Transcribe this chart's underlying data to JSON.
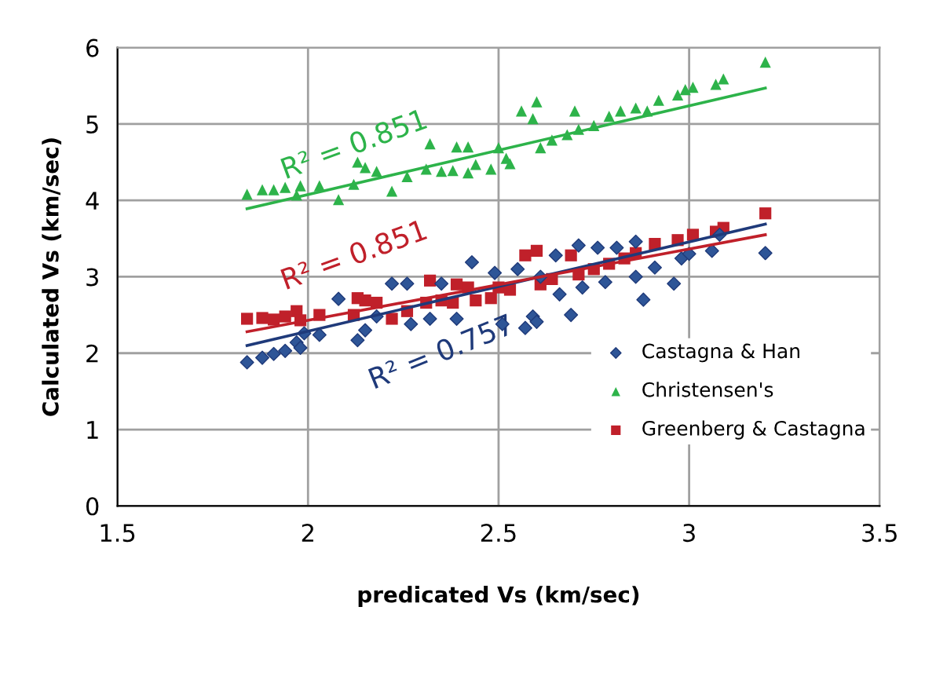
{
  "chart_data": {
    "type": "scatter",
    "xlabel": "predicated Vs (km/sec)",
    "ylabel": "Calculated Vs (km/sec)",
    "xlim": [
      1.5,
      3.5
    ],
    "xticks": [
      1.5,
      2,
      2.5,
      3,
      3.5
    ],
    "ylim": [
      0,
      6
    ],
    "yticks": [
      0,
      1,
      2,
      3,
      4,
      5,
      6
    ],
    "grid": true,
    "legend": "right",
    "annotations": [
      "R² = 0.757",
      "R² = 0.851",
      "R² = 0.851"
    ],
    "series": [
      {
        "name": "Castagna & Han",
        "color": "#2e5597",
        "marker": "diamond",
        "x": [
          1.84,
          1.88,
          1.91,
          1.94,
          1.97,
          1.98,
          1.99,
          2.03,
          2.08,
          2.13,
          2.15,
          2.18,
          2.22,
          2.26,
          2.27,
          2.32,
          2.35,
          2.39,
          2.43,
          2.49,
          2.51,
          2.55,
          2.57,
          2.59,
          2.6,
          2.61,
          2.65,
          2.66,
          2.69,
          2.71,
          2.72,
          2.76,
          2.78,
          2.81,
          2.86,
          2.86,
          2.88,
          2.91,
          2.96,
          2.98,
          3.0,
          3.06,
          3.08,
          3.2
        ],
        "values": [
          1.88,
          1.94,
          1.99,
          2.03,
          2.14,
          2.07,
          2.26,
          2.24,
          2.71,
          2.17,
          2.3,
          2.48,
          2.91,
          2.91,
          2.38,
          2.45,
          2.91,
          2.45,
          3.19,
          3.05,
          2.38,
          3.1,
          2.33,
          2.48,
          2.41,
          3.0,
          3.28,
          2.77,
          2.5,
          3.41,
          2.86,
          3.38,
          2.93,
          3.38,
          3.0,
          3.46,
          2.7,
          3.12,
          2.91,
          3.24,
          3.3,
          3.34,
          3.55,
          3.31
        ]
      },
      {
        "name": "Christensen's",
        "color": "#2db34a",
        "marker": "triangle",
        "x": [
          1.84,
          1.88,
          1.91,
          1.94,
          1.97,
          1.98,
          2.03,
          2.08,
          2.12,
          2.13,
          2.15,
          2.18,
          2.22,
          2.26,
          2.31,
          2.32,
          2.35,
          2.38,
          2.39,
          2.42,
          2.42,
          2.44,
          2.48,
          2.5,
          2.52,
          2.53,
          2.56,
          2.59,
          2.6,
          2.61,
          2.64,
          2.68,
          2.7,
          2.71,
          2.75,
          2.79,
          2.82,
          2.86,
          2.89,
          2.92,
          2.97,
          2.99,
          3.01,
          3.07,
          3.09,
          3.2
        ],
        "values": [
          4.08,
          4.14,
          4.14,
          4.17,
          4.07,
          4.19,
          4.19,
          4.01,
          4.21,
          4.5,
          4.43,
          4.38,
          4.12,
          4.31,
          4.41,
          4.74,
          4.38,
          4.39,
          4.7,
          4.7,
          4.36,
          4.47,
          4.41,
          4.69,
          4.55,
          4.48,
          5.17,
          5.07,
          5.29,
          4.69,
          4.79,
          4.86,
          5.17,
          4.93,
          4.98,
          5.1,
          5.17,
          5.21,
          5.17,
          5.31,
          5.38,
          5.45,
          5.48,
          5.52,
          5.59,
          5.81
        ]
      },
      {
        "name": "Greenberg & Castagna",
        "color": "#c0202a",
        "marker": "square",
        "x": [
          1.84,
          1.88,
          1.91,
          1.94,
          1.97,
          1.98,
          2.03,
          2.12,
          2.13,
          2.15,
          2.18,
          2.22,
          2.26,
          2.31,
          2.32,
          2.35,
          2.38,
          2.39,
          2.42,
          2.44,
          2.48,
          2.5,
          2.53,
          2.57,
          2.6,
          2.61,
          2.64,
          2.69,
          2.71,
          2.75,
          2.79,
          2.83,
          2.86,
          2.91,
          2.97,
          3.01,
          3.07,
          3.09,
          3.2
        ],
        "values": [
          2.45,
          2.46,
          2.44,
          2.48,
          2.55,
          2.43,
          2.5,
          2.5,
          2.72,
          2.69,
          2.66,
          2.45,
          2.55,
          2.66,
          2.95,
          2.69,
          2.66,
          2.9,
          2.86,
          2.69,
          2.72,
          2.86,
          2.83,
          3.28,
          3.34,
          2.9,
          2.97,
          3.28,
          3.03,
          3.1,
          3.17,
          3.24,
          3.31,
          3.43,
          3.48,
          3.55,
          3.59,
          3.64,
          3.83
        ]
      },
      {
        "type": "line",
        "color": "#1f3a7a",
        "x": [
          1.84,
          3.2
        ],
        "values": [
          2.1,
          3.69
        ]
      },
      {
        "type": "line",
        "color": "#2db34a",
        "x": [
          1.84,
          3.2
        ],
        "values": [
          3.89,
          5.47
        ]
      },
      {
        "type": "line",
        "color": "#c0202a",
        "x": [
          1.84,
          3.2
        ],
        "values": [
          2.28,
          3.55
        ]
      }
    ]
  }
}
